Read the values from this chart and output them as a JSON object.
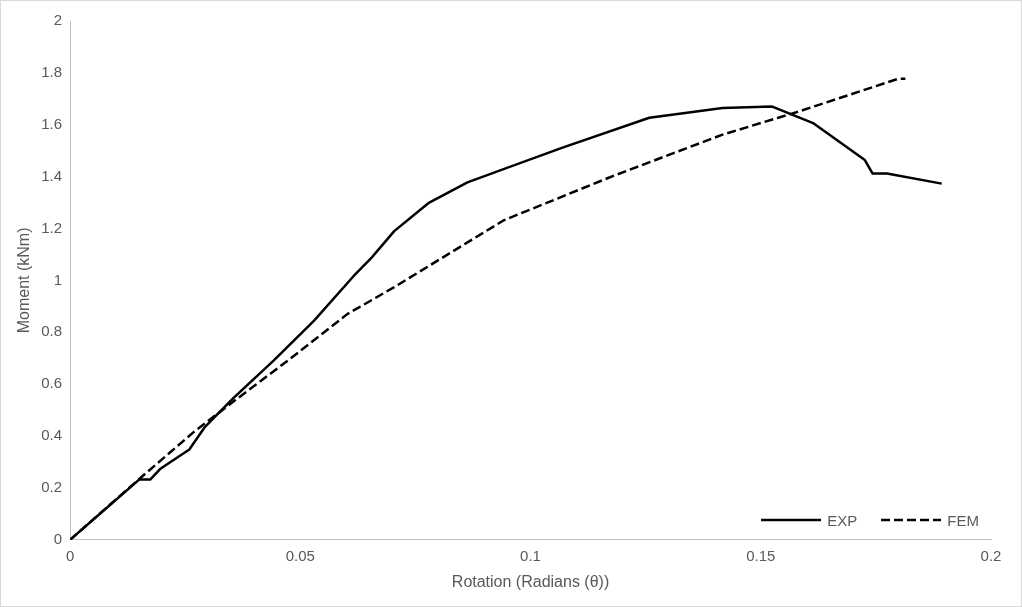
{
  "chart_data": {
    "type": "line",
    "xlabel": "Rotation (Radians (θ))",
    "ylabel": "Moment (kNm)",
    "xlim": [
      0,
      0.2
    ],
    "xticks": [
      0,
      0.05,
      0.1,
      0.15,
      0.2
    ],
    "ylim": [
      0,
      2
    ],
    "yticks": [
      0,
      0.2,
      0.4,
      0.6,
      0.8,
      1,
      1.2,
      1.4,
      1.6,
      1.8,
      2
    ],
    "grid": false,
    "legend": "bottom right",
    "marker": "none",
    "series": [
      {
        "name": "EXP",
        "color": "#000000",
        "line_style": "solid",
        "x": [
          0,
          0.015,
          0.0174,
          0.0197,
          0.0259,
          0.0292,
          0.0354,
          0.0442,
          0.053,
          0.0616,
          0.0656,
          0.0704,
          0.078,
          0.0863,
          0.1068,
          0.1258,
          0.1417,
          0.1525,
          0.1615,
          0.1726,
          0.1743,
          0.1774,
          0.1893
        ],
        "values": [
          0,
          0.232,
          0.232,
          0.275,
          0.348,
          0.433,
          0.545,
          0.691,
          0.845,
          1.017,
          1.09,
          1.19,
          1.3,
          1.378,
          1.511,
          1.627,
          1.665,
          1.67,
          1.605,
          1.464,
          1.412,
          1.412,
          1.373
        ]
      },
      {
        "name": "FEM",
        "color": "#000000",
        "line_style": "dashed",
        "x": [
          0,
          0.0157,
          0.0269,
          0.0354,
          0.0473,
          0.0602,
          0.0704,
          0.0942,
          0.118,
          0.1417,
          0.1577,
          0.1798,
          0.1814
        ],
        "values": [
          0,
          0.245,
          0.416,
          0.532,
          0.691,
          0.87,
          0.974,
          1.232,
          1.403,
          1.562,
          1.648,
          1.777,
          1.777
        ]
      }
    ]
  }
}
